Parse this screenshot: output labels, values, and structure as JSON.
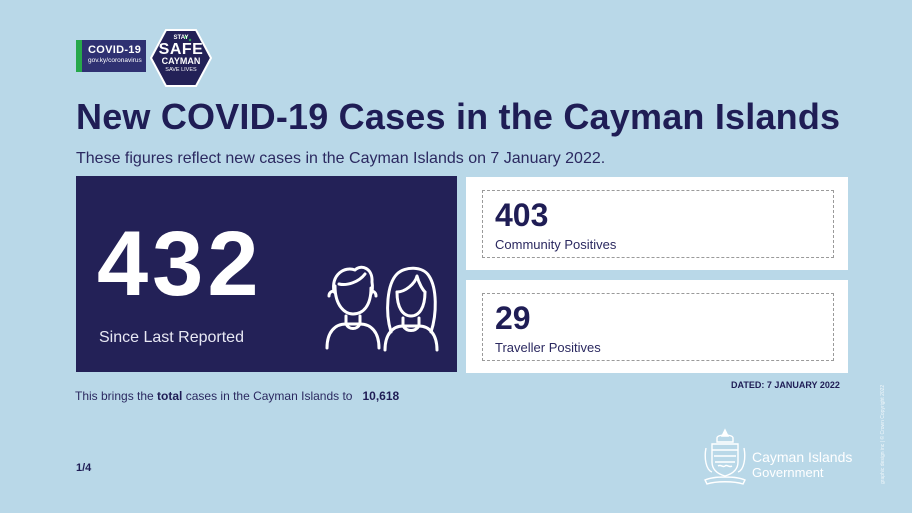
{
  "badges": {
    "covid_title": "COVID-19",
    "covid_url": "gov.ky/coronavirus",
    "stay": "STAY",
    "safe": "SAFE",
    "cayman": "CAYMAN",
    "save_lives": "SAVE LIVES"
  },
  "title": "New COVID-19 Cases in the Cayman Islands",
  "subtitle": "These figures reflect new cases in the Cayman Islands on 7 January 2022.",
  "main_stat": {
    "value": "432",
    "label": "Since Last Reported"
  },
  "cards": [
    {
      "value": "403",
      "label": "Community Positives"
    },
    {
      "value": "29",
      "label": "Traveller Positives"
    }
  ],
  "dated": "DATED: 7 JANUARY 2022",
  "total": {
    "prefix": "This brings the ",
    "bold": "total",
    "suffix": " cases in the Cayman Islands to",
    "value": "10,618"
  },
  "page_indicator": "1/4",
  "government": {
    "line1": "Cayman Islands",
    "line2": "Government"
  },
  "credit": "graphic design inc | © Crown Copyright 2022",
  "colors": {
    "background": "#b9d8e8",
    "navy": "#232157",
    "green": "#27a84a"
  }
}
